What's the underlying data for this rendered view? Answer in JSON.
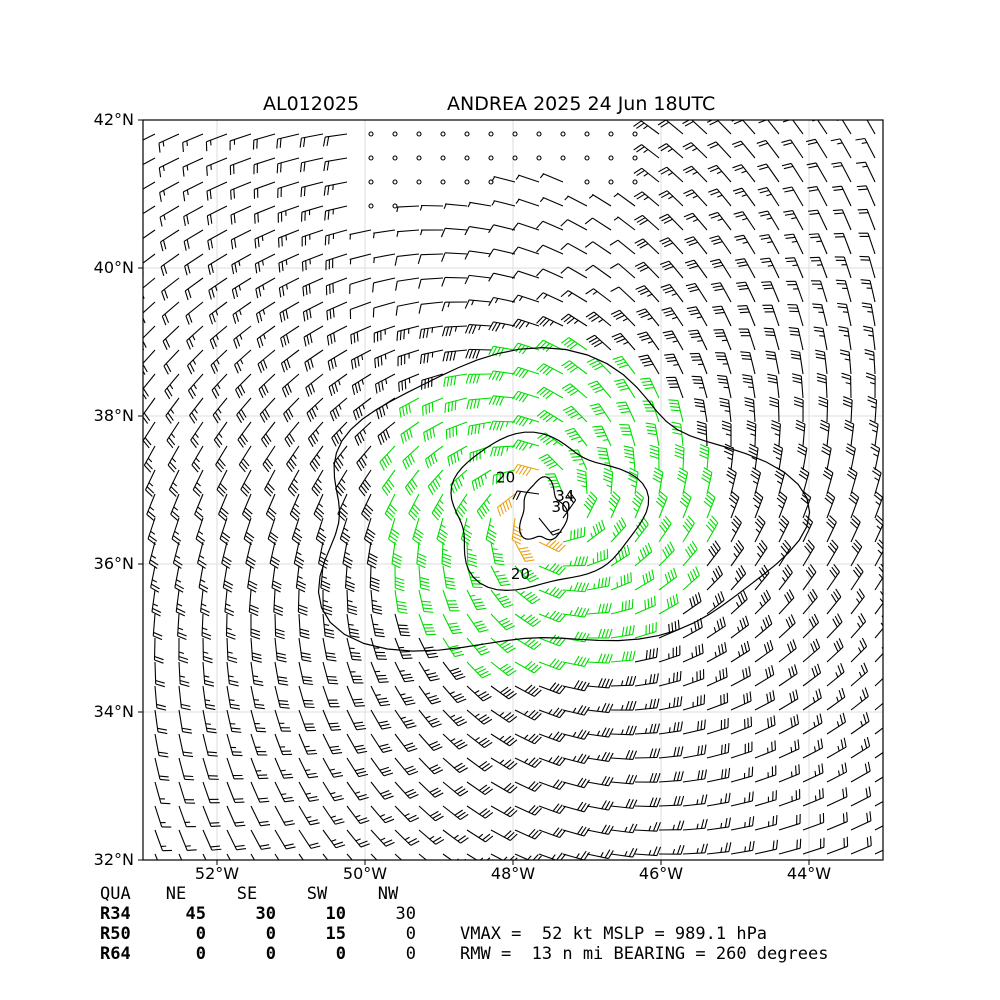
{
  "title": {
    "storm_id": "AL012025",
    "storm_label": "ANDREA 2025 24 Jun 18UTC"
  },
  "map": {
    "lon_range": [
      -53.0,
      -43.0
    ],
    "lat_range": [
      32.0,
      42.0
    ],
    "x_ticks": [
      {
        "lon": -52,
        "label": "52°W"
      },
      {
        "lon": -50,
        "label": "50°W"
      },
      {
        "lon": -48,
        "label": "48°W"
      },
      {
        "lon": -46,
        "label": "46°W"
      },
      {
        "lon": -44,
        "label": "44°W"
      }
    ],
    "y_ticks": [
      {
        "lat": 42,
        "label": "42°N"
      },
      {
        "lat": 40,
        "label": "40°N"
      },
      {
        "lat": 38,
        "label": "38°N"
      },
      {
        "lat": 36,
        "label": "36°N"
      },
      {
        "lat": 34,
        "label": "34°N"
      },
      {
        "lat": 32,
        "label": "32°N"
      }
    ],
    "grid": true,
    "storm_center": {
      "lon": -47.6,
      "lat": 36.7
    },
    "contour_labels": [
      {
        "text": "20",
        "lon": -48.1,
        "lat": 37.1
      },
      {
        "text": "20",
        "lon": -47.9,
        "lat": 35.8
      },
      {
        "text": "30",
        "lon": -47.35,
        "lat": 36.7
      },
      {
        "text": "34",
        "lon": -47.3,
        "lat": 36.85
      }
    ],
    "colors": {
      "barb_default": "#000000",
      "barb_34kt": "#00dd00",
      "barb_50kt": "#e8a317",
      "grid": "#dddddd"
    }
  },
  "wind_radii": {
    "headers": [
      "QUA",
      "NE",
      "SE",
      "SW",
      "NW"
    ],
    "rows": [
      {
        "label": "R34",
        "values": [
          "45",
          "30",
          "10",
          "30"
        ]
      },
      {
        "label": "R50",
        "values": [
          "0",
          "0",
          "15",
          "0"
        ]
      },
      {
        "label": "R64",
        "values": [
          "0",
          "0",
          "0",
          "0"
        ]
      }
    ]
  },
  "summary": {
    "line1": "VMAX =  52 kt MSLP = 989.1 hPa",
    "line2": "RMW =  13 n mi BEARING = 260 degrees"
  }
}
